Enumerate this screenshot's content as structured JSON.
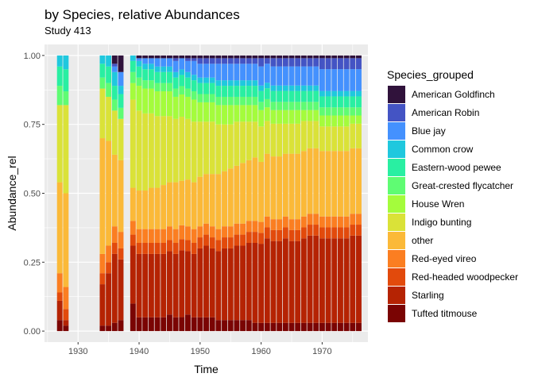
{
  "chart_data": {
    "type": "bar",
    "stacked": true,
    "title": "by Species, relative Abundances",
    "subtitle": "Study 413",
    "xlabel": "Time",
    "ylabel": "Abundance_rel",
    "xlim": [
      1924.5,
      1977.5
    ],
    "ylim": [
      -0.04,
      1.04
    ],
    "x_ticks": [
      1930,
      1940,
      1950,
      1960,
      1970
    ],
    "y_ticks": [
      0.0,
      0.25,
      0.5,
      0.75,
      1.0
    ],
    "y_tick_labels": [
      "0.00",
      "0.25",
      "0.50",
      "0.75",
      "1.00"
    ],
    "grid": true,
    "legend_title": "Species_grouped",
    "legend_position": "right",
    "series": [
      {
        "name": "American Goldfinch",
        "color": "#30123b"
      },
      {
        "name": "American Robin",
        "color": "#4454c4"
      },
      {
        "name": "Blue jay",
        "color": "#4491fe"
      },
      {
        "name": "Common crow",
        "color": "#1fc8de"
      },
      {
        "name": "Eastern-wood pewee",
        "color": "#29efa2"
      },
      {
        "name": "Great-crested flycatcher",
        "color": "#5ffc73"
      },
      {
        "name": "House Wren",
        "color": "#a4fc3c"
      },
      {
        "name": "Indigo bunting",
        "color": "#dae238"
      },
      {
        "name": "other",
        "color": "#fbb938"
      },
      {
        "name": "Red-eyed vireo",
        "color": "#fb7e21"
      },
      {
        "name": "Red-headed woodpecker",
        "color": "#e24a0c"
      },
      {
        "name": "Starling",
        "color": "#b52303"
      },
      {
        "name": "Tufted titmouse",
        "color": "#7a0403"
      }
    ],
    "years": [
      1927,
      1928,
      1934,
      1935,
      1936,
      1937,
      1939,
      1940,
      1941,
      1942,
      1943,
      1944,
      1945,
      1946,
      1947,
      1948,
      1949,
      1950,
      1951,
      1952,
      1953,
      1954,
      1955,
      1956,
      1957,
      1958,
      1959,
      1960,
      1961,
      1962,
      1963,
      1964,
      1965,
      1966,
      1967,
      1968,
      1969,
      1970,
      1971,
      1972,
      1973,
      1974,
      1975,
      1976
    ],
    "values": [
      [
        0,
        0,
        0,
        0,
        0.03,
        0.06,
        0,
        0.01,
        0.01,
        0.01,
        0.01,
        0.01,
        0.01,
        0.01,
        0.01,
        0.01,
        0.01,
        0.01,
        0.01,
        0.01,
        0.01,
        0.01,
        0.01,
        0.01,
        0.01,
        0.01,
        0.01,
        0.01,
        0.01,
        0.01,
        0.01,
        0.01,
        0.01,
        0.01,
        0.01,
        0.01,
        0.01,
        0.01,
        0.01,
        0.01,
        0.01,
        0.01,
        0.01,
        0.01
      ],
      [
        0,
        0,
        0,
        0,
        0.01,
        0,
        0,
        0,
        0,
        0,
        0,
        0,
        0,
        0.01,
        0,
        0.01,
        0.01,
        0.02,
        0.02,
        0.02,
        0.02,
        0.02,
        0.02,
        0.02,
        0.02,
        0.02,
        0.02,
        0.03,
        0.02,
        0.03,
        0.03,
        0.03,
        0.03,
        0.03,
        0.03,
        0.03,
        0.03,
        0.04,
        0.04,
        0.04,
        0.04,
        0.04,
        0.04,
        0.04
      ],
      [
        0,
        0,
        0,
        0,
        0.02,
        0.05,
        0,
        0.01,
        0.02,
        0.02,
        0.03,
        0.03,
        0.03,
        0.04,
        0.04,
        0.04,
        0.05,
        0.05,
        0.05,
        0.05,
        0.06,
        0.06,
        0.06,
        0.06,
        0.06,
        0.06,
        0.06,
        0.07,
        0.07,
        0.07,
        0.07,
        0.07,
        0.07,
        0.07,
        0.07,
        0.07,
        0.07,
        0.08,
        0.08,
        0.08,
        0.08,
        0.08,
        0.08,
        0.08
      ],
      [
        0.04,
        0.05,
        0.03,
        0.04,
        0.05,
        0.03,
        0.02,
        0.02,
        0.02,
        0.02,
        0.02,
        0.02,
        0.02,
        0.02,
        0.02,
        0.02,
        0.02,
        0.02,
        0.02,
        0.02,
        0.02,
        0.02,
        0.02,
        0.02,
        0.02,
        0.02,
        0.02,
        0.02,
        0.02,
        0.02,
        0.02,
        0.02,
        0.02,
        0.02,
        0.02,
        0.02,
        0.02,
        0.02,
        0.02,
        0.02,
        0.02,
        0.02,
        0.02,
        0.02
      ],
      [
        0.07,
        0.08,
        0.05,
        0.06,
        0.05,
        0.05,
        0.04,
        0.04,
        0.04,
        0.04,
        0.04,
        0.04,
        0.04,
        0.04,
        0.04,
        0.04,
        0.04,
        0.04,
        0.04,
        0.04,
        0.04,
        0.04,
        0.04,
        0.04,
        0.04,
        0.04,
        0.04,
        0.04,
        0.04,
        0.04,
        0.04,
        0.04,
        0.04,
        0.04,
        0.04,
        0.04,
        0.04,
        0.04,
        0.04,
        0.04,
        0.04,
        0.04,
        0.04,
        0.04
      ],
      [
        0.07,
        0.05,
        0.04,
        0.05,
        0.04,
        0.04,
        0.04,
        0.03,
        0.03,
        0.03,
        0.03,
        0.03,
        0.03,
        0.03,
        0.03,
        0.03,
        0.03,
        0.03,
        0.03,
        0.03,
        0.03,
        0.03,
        0.03,
        0.03,
        0.03,
        0.03,
        0.03,
        0.03,
        0.03,
        0.03,
        0.03,
        0.03,
        0.03,
        0.03,
        0.03,
        0.03,
        0.03,
        0.03,
        0.03,
        0.03,
        0.03,
        0.03,
        0.03,
        0.03
      ],
      [
        0,
        0,
        0,
        0,
        0,
        0,
        0.06,
        0.09,
        0.09,
        0.09,
        0.09,
        0.09,
        0.09,
        0.08,
        0.08,
        0.08,
        0.08,
        0.07,
        0.07,
        0.07,
        0.07,
        0.07,
        0.07,
        0.06,
        0.06,
        0.06,
        0.06,
        0.06,
        0.05,
        0.05,
        0.05,
        0.05,
        0.05,
        0.05,
        0.04,
        0.04,
        0.04,
        0.04,
        0.04,
        0.04,
        0.04,
        0.04,
        0.03,
        0.03
      ],
      [
        0.28,
        0.32,
        0.18,
        0.16,
        0.16,
        0.15,
        0.32,
        0.29,
        0.28,
        0.27,
        0.26,
        0.25,
        0.24,
        0.23,
        0.23,
        0.22,
        0.22,
        0.2,
        0.19,
        0.19,
        0.18,
        0.17,
        0.16,
        0.16,
        0.15,
        0.14,
        0.13,
        0.13,
        0.12,
        0.12,
        0.12,
        0.11,
        0.11,
        0.11,
        0.11,
        0.1,
        0.1,
        0.09,
        0.09,
        0.09,
        0.09,
        0.09,
        0.09,
        0.09
      ],
      [
        0.33,
        0.34,
        0.42,
        0.38,
        0.26,
        0.26,
        0.12,
        0.14,
        0.14,
        0.15,
        0.15,
        0.16,
        0.16,
        0.17,
        0.16,
        0.17,
        0.17,
        0.18,
        0.18,
        0.19,
        0.2,
        0.2,
        0.21,
        0.21,
        0.22,
        0.22,
        0.23,
        0.22,
        0.23,
        0.23,
        0.23,
        0.23,
        0.24,
        0.24,
        0.24,
        0.24,
        0.24,
        0.24,
        0.24,
        0.24,
        0.24,
        0.24,
        0.24,
        0.24
      ],
      [
        0.07,
        0.08,
        0.07,
        0.06,
        0.06,
        0.06,
        0.05,
        0.05,
        0.05,
        0.05,
        0.05,
        0.05,
        0.05,
        0.05,
        0.05,
        0.05,
        0.05,
        0.04,
        0.04,
        0.04,
        0.04,
        0.04,
        0.04,
        0.04,
        0.04,
        0.04,
        0.04,
        0.04,
        0.04,
        0.04,
        0.04,
        0.04,
        0.04,
        0.04,
        0.04,
        0.04,
        0.04,
        0.04,
        0.04,
        0.04,
        0.04,
        0.04,
        0.04,
        0.04
      ],
      [
        0.03,
        0.04,
        0.04,
        0.04,
        0.04,
        0.04,
        0.04,
        0.04,
        0.04,
        0.04,
        0.04,
        0.04,
        0.04,
        0.04,
        0.04,
        0.04,
        0.04,
        0.04,
        0.04,
        0.04,
        0.04,
        0.04,
        0.04,
        0.04,
        0.04,
        0.04,
        0.04,
        0.04,
        0.04,
        0.04,
        0.04,
        0.04,
        0.04,
        0.04,
        0.04,
        0.04,
        0.04,
        0.04,
        0.04,
        0.04,
        0.04,
        0.04,
        0.04,
        0.04
      ],
      [
        0.07,
        0.02,
        0.15,
        0.19,
        0.25,
        0.22,
        0.21,
        0.23,
        0.23,
        0.23,
        0.23,
        0.23,
        0.23,
        0.23,
        0.24,
        0.23,
        0.23,
        0.25,
        0.26,
        0.25,
        0.25,
        0.26,
        0.26,
        0.27,
        0.27,
        0.28,
        0.29,
        0.29,
        0.31,
        0.3,
        0.3,
        0.31,
        0.3,
        0.3,
        0.31,
        0.32,
        0.32,
        0.31,
        0.31,
        0.31,
        0.31,
        0.31,
        0.32,
        0.32
      ],
      [
        0.04,
        0.02,
        0.02,
        0.02,
        0.03,
        0.04,
        0.1,
        0.05,
        0.05,
        0.05,
        0.05,
        0.05,
        0.06,
        0.05,
        0.05,
        0.06,
        0.05,
        0.05,
        0.05,
        0.05,
        0.04,
        0.04,
        0.04,
        0.04,
        0.04,
        0.04,
        0.03,
        0.03,
        0.03,
        0.03,
        0.03,
        0.03,
        0.03,
        0.03,
        0.03,
        0.03,
        0.03,
        0.03,
        0.03,
        0.03,
        0.03,
        0.03,
        0.03,
        0.03
      ]
    ]
  }
}
